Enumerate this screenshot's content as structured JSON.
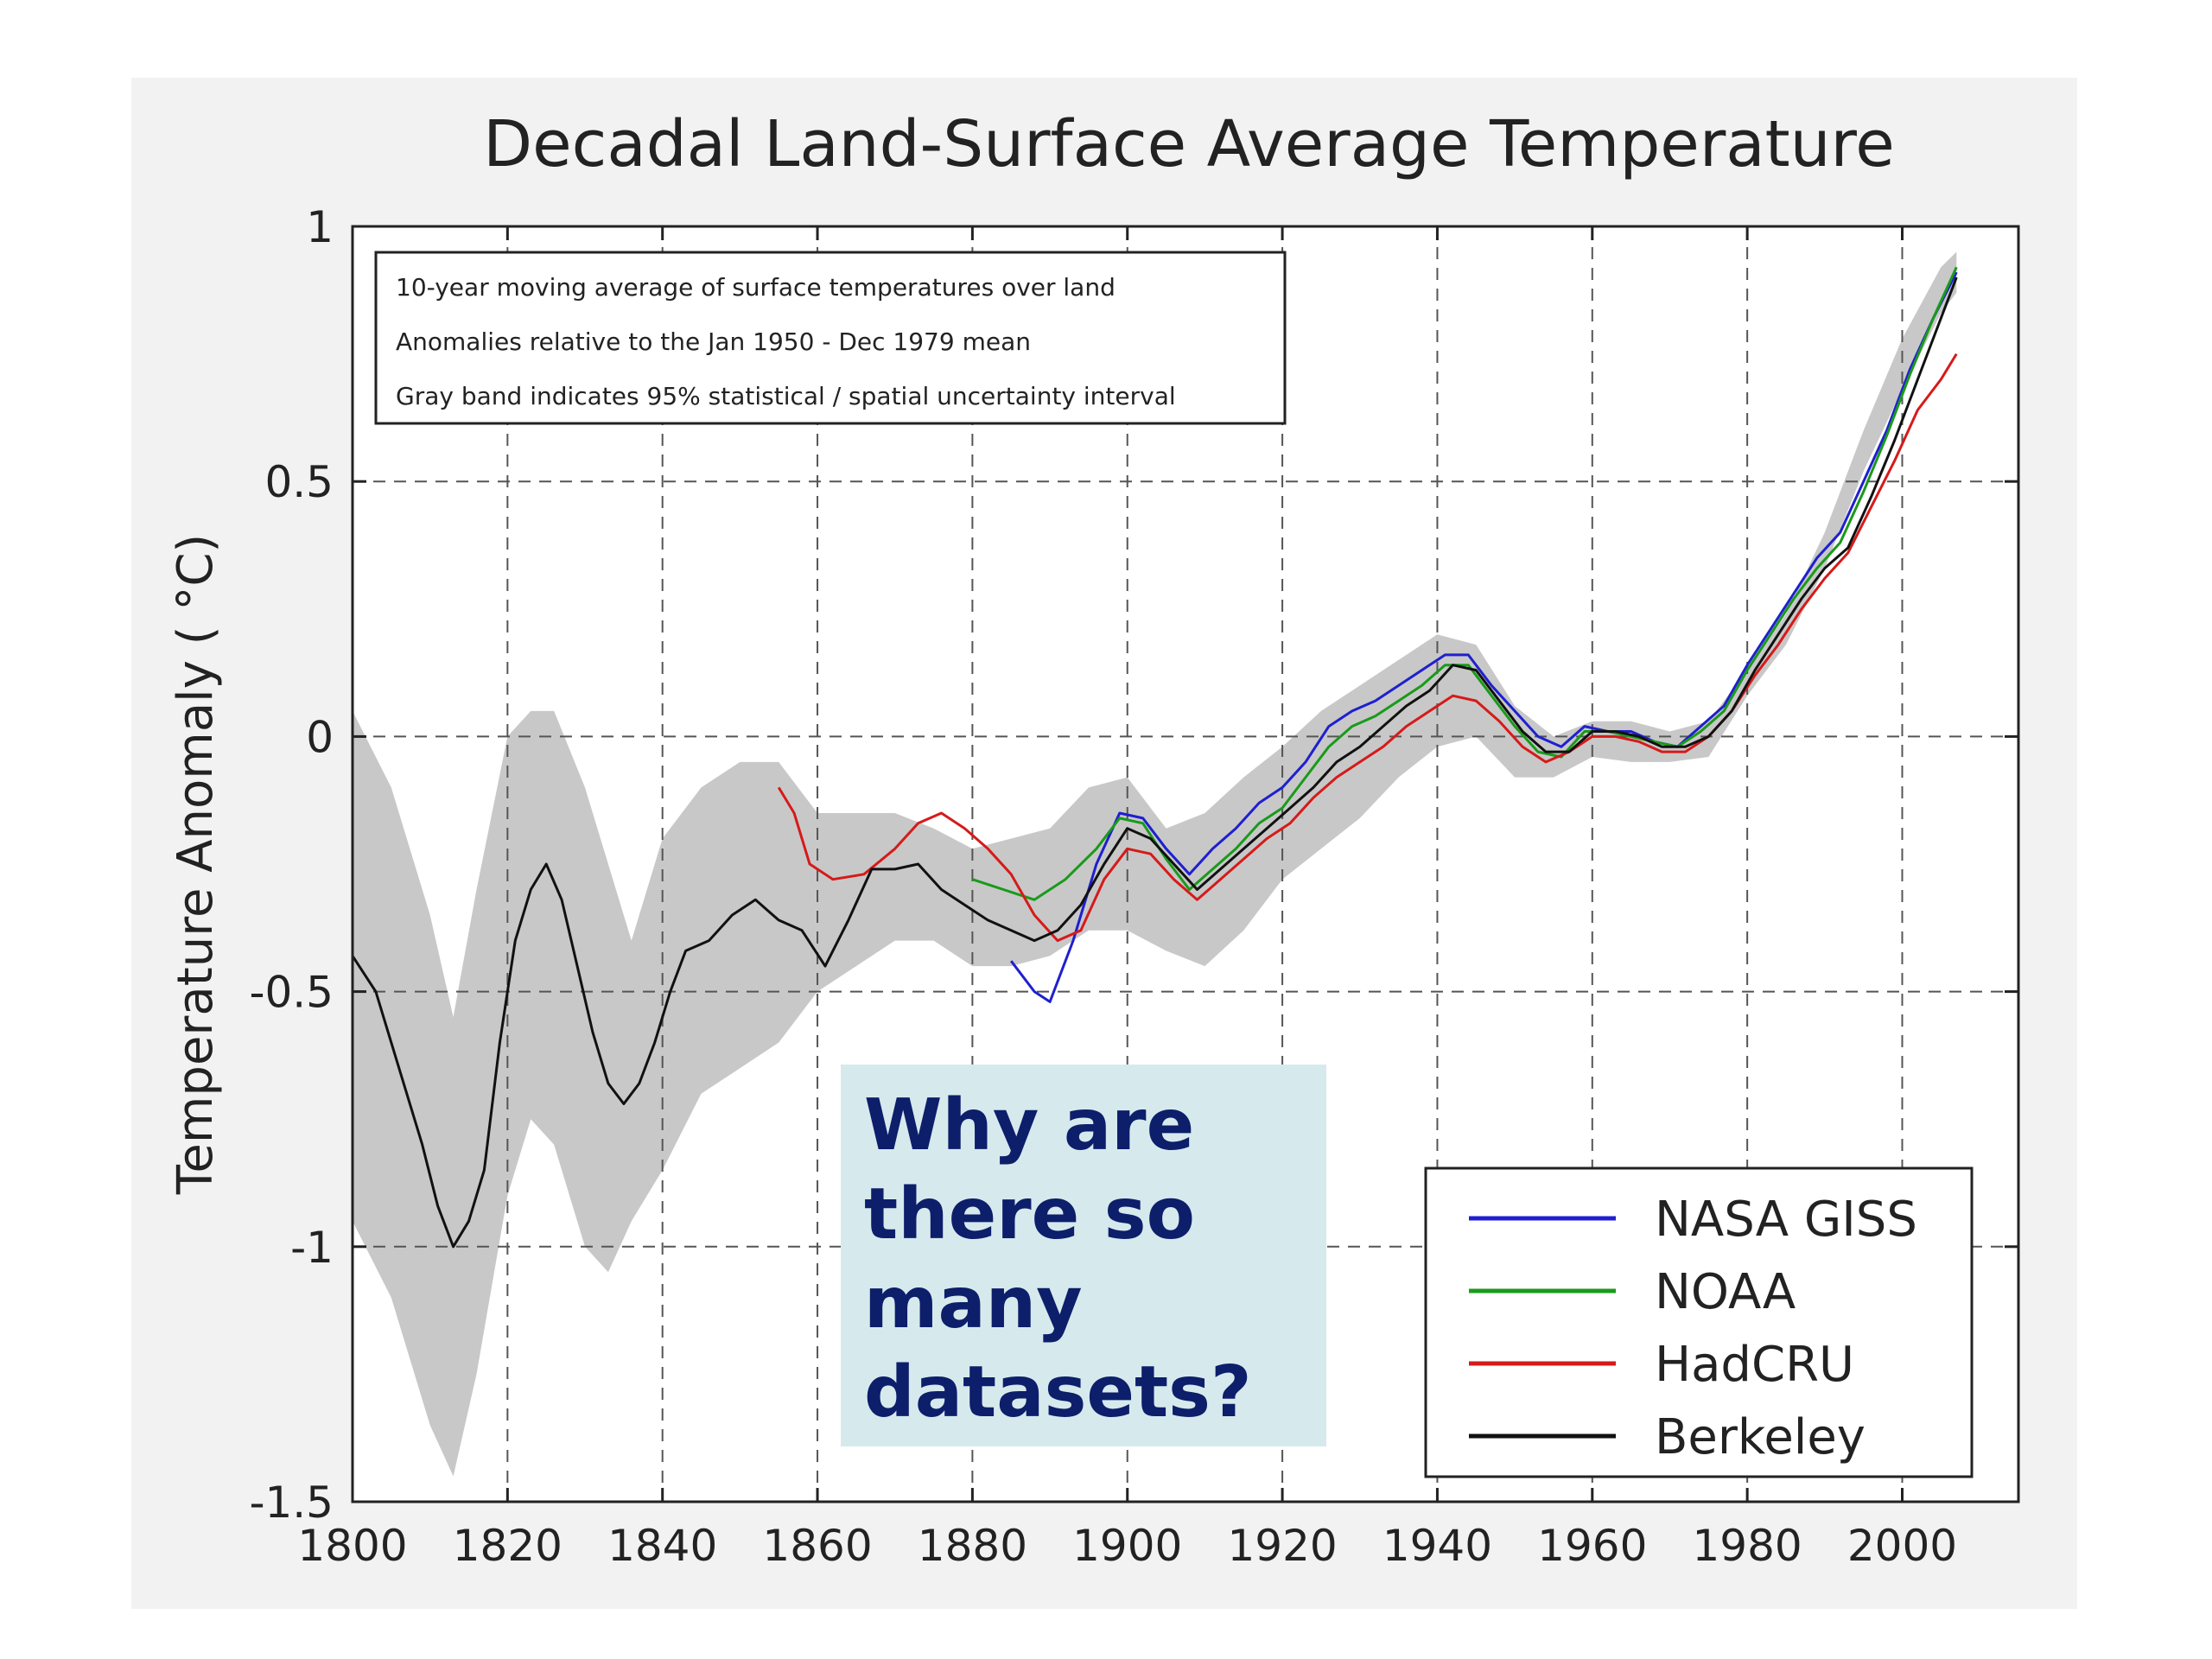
{
  "chart_data": {
    "type": "line",
    "title": "Decadal Land-Surface Average Temperature",
    "xlabel": "",
    "ylabel": "Temperature Anomaly ( °C)",
    "xlim": [
      1800,
      2015
    ],
    "ylim": [
      -1.5,
      1
    ],
    "x_ticks": [
      1800,
      1820,
      1840,
      1860,
      1880,
      1900,
      1920,
      1940,
      1960,
      1980,
      2000
    ],
    "y_ticks": [
      1,
      0.5,
      0,
      -0.5,
      -1,
      -1.5
    ],
    "x_tick_labels": [
      "1800",
      "1820",
      "1840",
      "1860",
      "1880",
      "1900",
      "1920",
      "1940",
      "1960",
      "1980",
      "2000"
    ],
    "y_tick_labels": [
      "1",
      "0.5",
      "0",
      "-0.5",
      "-1",
      "-1.5"
    ],
    "grid": true,
    "legend_position": "bottom-right",
    "notes": [
      "10-year moving average of surface temperatures over land",
      "Anomalies relative to the Jan 1950 - Dec 1979 mean",
      "Gray band indicates 95% statistical / spatial uncertainty interval"
    ],
    "band_color": "#c8c8c8",
    "uncertainty_band": {
      "x": [
        1800,
        1805,
        1810,
        1813,
        1816,
        1820,
        1823,
        1826,
        1830,
        1833,
        1836,
        1840,
        1845,
        1850,
        1855,
        1860,
        1865,
        1870,
        1875,
        1880,
        1885,
        1890,
        1895,
        1900,
        1905,
        1910,
        1915,
        1920,
        1925,
        1930,
        1935,
        1940,
        1945,
        1950,
        1955,
        1960,
        1965,
        1970,
        1975,
        1980,
        1985,
        1990,
        1995,
        2000,
        2005,
        2007
      ],
      "upper": [
        0.05,
        -0.1,
        -0.35,
        -0.55,
        -0.3,
        0.0,
        0.05,
        0.05,
        -0.1,
        -0.25,
        -0.4,
        -0.2,
        -0.1,
        -0.05,
        -0.05,
        -0.15,
        -0.15,
        -0.15,
        -0.18,
        -0.22,
        -0.2,
        -0.18,
        -0.1,
        -0.08,
        -0.18,
        -0.15,
        -0.08,
        -0.02,
        0.05,
        0.1,
        0.15,
        0.2,
        0.18,
        0.06,
        0.0,
        0.03,
        0.03,
        0.01,
        0.03,
        0.13,
        0.24,
        0.4,
        0.6,
        0.78,
        0.92,
        0.95
      ],
      "lower": [
        -0.95,
        -1.1,
        -1.35,
        -1.45,
        -1.25,
        -0.9,
        -0.75,
        -0.8,
        -1.0,
        -1.05,
        -0.95,
        -0.85,
        -0.7,
        -0.65,
        -0.6,
        -0.5,
        -0.45,
        -0.4,
        -0.4,
        -0.45,
        -0.45,
        -0.43,
        -0.38,
        -0.38,
        -0.42,
        -0.45,
        -0.38,
        -0.28,
        -0.22,
        -0.16,
        -0.08,
        -0.02,
        0.0,
        -0.08,
        -0.08,
        -0.04,
        -0.05,
        -0.05,
        -0.04,
        0.08,
        0.18,
        0.33,
        0.52,
        0.68,
        0.83,
        0.87
      ]
    },
    "series": [
      {
        "name": "NASA GISS",
        "color": "#1f1fd0",
        "x": [
          1885,
          1888,
          1890,
          1893,
          1896,
          1899,
          1902,
          1905,
          1908,
          1911,
          1914,
          1917,
          1920,
          1923,
          1926,
          1929,
          1932,
          1935,
          1938,
          1941,
          1944,
          1947,
          1950,
          1953,
          1956,
          1959,
          1962,
          1965,
          1968,
          1971,
          1974,
          1977,
          1980,
          1983,
          1986,
          1989,
          1992,
          1995,
          1998,
          2001,
          2004,
          2007
        ],
        "values": [
          -0.44,
          -0.5,
          -0.52,
          -0.4,
          -0.25,
          -0.15,
          -0.16,
          -0.22,
          -0.27,
          -0.22,
          -0.18,
          -0.13,
          -0.1,
          -0.05,
          0.02,
          0.05,
          0.07,
          0.1,
          0.13,
          0.16,
          0.16,
          0.1,
          0.05,
          0.0,
          -0.02,
          0.02,
          0.01,
          0.01,
          -0.01,
          -0.02,
          0.02,
          0.06,
          0.14,
          0.21,
          0.28,
          0.35,
          0.4,
          0.5,
          0.6,
          0.72,
          0.82,
          0.91
        ]
      },
      {
        "name": "NOAA",
        "color": "#1a9a1a",
        "x": [
          1880,
          1884,
          1888,
          1892,
          1896,
          1899,
          1902,
          1905,
          1908,
          1911,
          1914,
          1917,
          1920,
          1923,
          1926,
          1929,
          1932,
          1935,
          1938,
          1941,
          1944,
          1947,
          1950,
          1953,
          1956,
          1959,
          1962,
          1965,
          1968,
          1971,
          1974,
          1977,
          1980,
          1983,
          1986,
          1989,
          1992,
          1995,
          1998,
          2001,
          2004,
          2007
        ],
        "values": [
          -0.28,
          -0.3,
          -0.32,
          -0.28,
          -0.22,
          -0.16,
          -0.17,
          -0.24,
          -0.3,
          -0.26,
          -0.22,
          -0.17,
          -0.14,
          -0.08,
          -0.02,
          0.02,
          0.04,
          0.07,
          0.1,
          0.14,
          0.14,
          0.08,
          0.02,
          -0.03,
          -0.04,
          0.01,
          0.01,
          0.0,
          -0.01,
          -0.02,
          0.01,
          0.05,
          0.13,
          0.2,
          0.27,
          0.33,
          0.38,
          0.48,
          0.59,
          0.71,
          0.82,
          0.92
        ]
      },
      {
        "name": "HadCRU",
        "color": "#d61a1a",
        "x": [
          1855,
          1857,
          1859,
          1862,
          1866,
          1870,
          1873,
          1876,
          1879,
          1882,
          1885,
          1888,
          1891,
          1894,
          1897,
          1900,
          1903,
          1906,
          1909,
          1912,
          1915,
          1918,
          1921,
          1924,
          1927,
          1930,
          1933,
          1936,
          1939,
          1942,
          1945,
          1948,
          1951,
          1954,
          1957,
          1960,
          1963,
          1966,
          1969,
          1972,
          1975,
          1978,
          1981,
          1984,
          1987,
          1990,
          1993,
          1996,
          1999,
          2002,
          2005,
          2007
        ],
        "values": [
          -0.1,
          -0.15,
          -0.25,
          -0.28,
          -0.27,
          -0.22,
          -0.17,
          -0.15,
          -0.18,
          -0.22,
          -0.27,
          -0.35,
          -0.4,
          -0.38,
          -0.28,
          -0.22,
          -0.23,
          -0.28,
          -0.32,
          -0.28,
          -0.24,
          -0.2,
          -0.17,
          -0.12,
          -0.08,
          -0.05,
          -0.02,
          0.02,
          0.05,
          0.08,
          0.07,
          0.03,
          -0.02,
          -0.05,
          -0.03,
          0.0,
          0.0,
          -0.01,
          -0.03,
          -0.03,
          0.0,
          0.05,
          0.12,
          0.18,
          0.25,
          0.31,
          0.36,
          0.45,
          0.54,
          0.64,
          0.7,
          0.75
        ]
      },
      {
        "name": "Berkeley",
        "color": "#111111",
        "x": [
          1800,
          1803,
          1806,
          1809,
          1811,
          1813,
          1815,
          1817,
          1819,
          1821,
          1823,
          1825,
          1827,
          1829,
          1831,
          1833,
          1835,
          1837,
          1839,
          1841,
          1843,
          1846,
          1849,
          1852,
          1855,
          1858,
          1861,
          1864,
          1867,
          1870,
          1873,
          1876,
          1879,
          1882,
          1885,
          1888,
          1891,
          1894,
          1897,
          1900,
          1903,
          1906,
          1909,
          1912,
          1915,
          1918,
          1921,
          1924,
          1927,
          1930,
          1933,
          1936,
          1939,
          1942,
          1945,
          1948,
          1951,
          1954,
          1957,
          1960,
          1963,
          1966,
          1969,
          1972,
          1975,
          1978,
          1981,
          1984,
          1987,
          1990,
          1993,
          1996,
          1999,
          2002,
          2005,
          2007
        ],
        "values": [
          -0.43,
          -0.5,
          -0.65,
          -0.8,
          -0.92,
          -1.0,
          -0.95,
          -0.85,
          -0.6,
          -0.4,
          -0.3,
          -0.25,
          -0.32,
          -0.45,
          -0.58,
          -0.68,
          -0.72,
          -0.68,
          -0.6,
          -0.5,
          -0.42,
          -0.4,
          -0.35,
          -0.32,
          -0.36,
          -0.38,
          -0.45,
          -0.36,
          -0.26,
          -0.26,
          -0.25,
          -0.3,
          -0.33,
          -0.36,
          -0.38,
          -0.4,
          -0.38,
          -0.33,
          -0.25,
          -0.18,
          -0.2,
          -0.25,
          -0.3,
          -0.26,
          -0.22,
          -0.18,
          -0.14,
          -0.1,
          -0.05,
          -0.02,
          0.02,
          0.06,
          0.09,
          0.14,
          0.13,
          0.07,
          0.01,
          -0.03,
          -0.03,
          0.01,
          0.01,
          0.0,
          -0.02,
          -0.02,
          0.0,
          0.05,
          0.13,
          0.2,
          0.27,
          0.33,
          0.37,
          0.47,
          0.58,
          0.7,
          0.82,
          0.9
        ]
      }
    ]
  },
  "callout": {
    "lines": [
      "Why are",
      "there so",
      "many",
      "datasets?"
    ],
    "background": "#d6eaed",
    "text_color": "#0d1e6b"
  }
}
